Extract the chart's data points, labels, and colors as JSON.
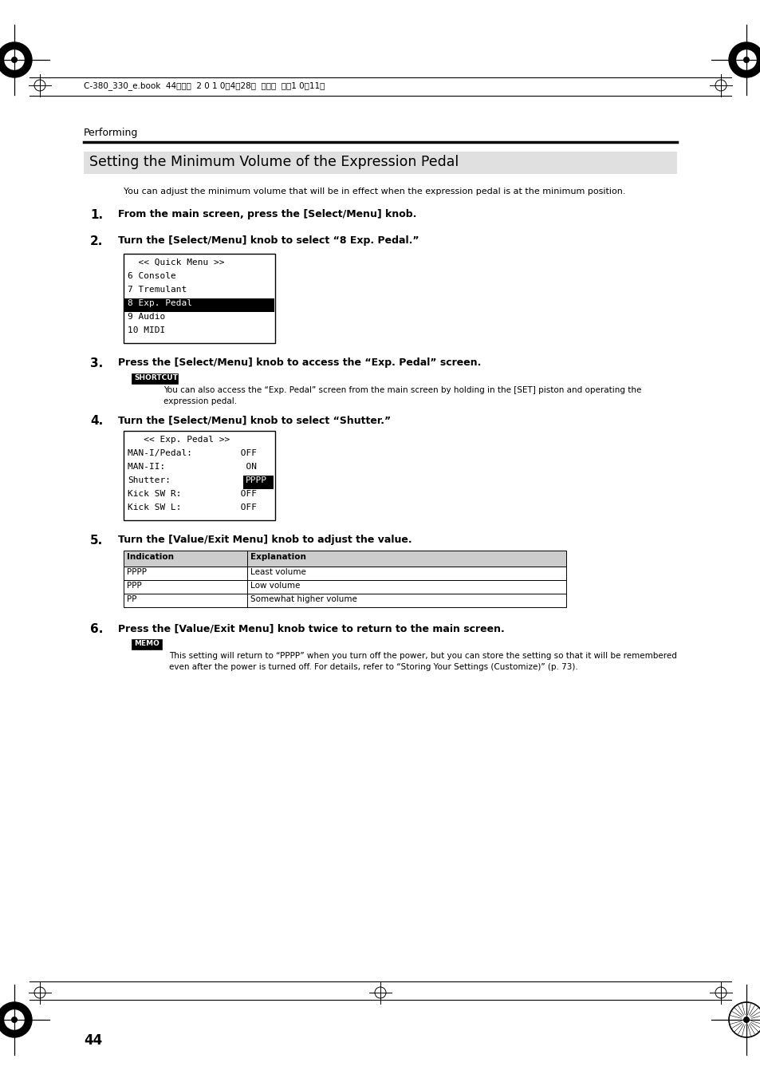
{
  "page_bg": "#ffffff",
  "title_text": "Setting the Minimum Volume of the Expression Pedal",
  "title_bg": "#e0e0e0",
  "header_label": "Performing",
  "header_file": "C-380_330_e.book  44ページ  2 0 1 0年4月28日  水曜日  午後1 0時11分",
  "intro_text": "You can adjust the minimum volume that will be in effect when the expression pedal is at the minimum position.",
  "steps": [
    {
      "num": "1.",
      "text": "From the main screen, press the [Select/Menu] knob."
    },
    {
      "num": "2.",
      "text": "Turn the [Select/Menu] knob to select “8 Exp. Pedal.”"
    },
    {
      "num": "3.",
      "text": "Press the [Select/Menu] knob to access the “Exp. Pedal” screen."
    },
    {
      "num": "4.",
      "text": "Turn the [Select/Menu] knob to select “Shutter.”"
    },
    {
      "num": "5.",
      "text": "Turn the [Value/Exit Menu] knob to adjust the value."
    },
    {
      "num": "6.",
      "text": "Press the [Value/Exit Menu] knob twice to return to the main screen."
    }
  ],
  "menu1_lines": [
    [
      "  << Quick Menu >>",
      false
    ],
    [
      "6 Console",
      false
    ],
    [
      "7 Tremulant",
      false
    ],
    [
      "8 Exp. Pedal",
      true
    ],
    [
      "9 Audio",
      false
    ],
    [
      "10 MIDI",
      false
    ]
  ],
  "menu2_lines": [
    [
      "   << Exp. Pedal >>",
      false,
      false
    ],
    [
      "MAN-I/Pedal:         OFF",
      false,
      false
    ],
    [
      "MAN-II:               ON",
      false,
      false
    ],
    [
      "Shutter:            PPPP",
      false,
      true
    ],
    [
      "Kick SW R:           OFF",
      false,
      false
    ],
    [
      "Kick SW L:           OFF",
      false,
      false
    ]
  ],
  "shortcut_label": "SHORTCUT",
  "shortcut_text": "You can also access the “Exp. Pedal” screen from the main screen by holding in the [SET] piston and operating the\nexpression pedal.",
  "table_headers": [
    "Indication",
    "Explanation"
  ],
  "table_rows": [
    [
      "PPPP",
      "Least volume"
    ],
    [
      "PPP",
      "Low volume"
    ],
    [
      "PP",
      "Somewhat higher volume"
    ]
  ],
  "memo_label": "MEMO",
  "memo_text": "This setting will return to “PPPP” when you turn off the power, but you can store the setting so that it will be remembered\neven after the power is turned off. For details, refer to “Storing Your Settings (Customize)” (p. 73).",
  "page_num": "44"
}
